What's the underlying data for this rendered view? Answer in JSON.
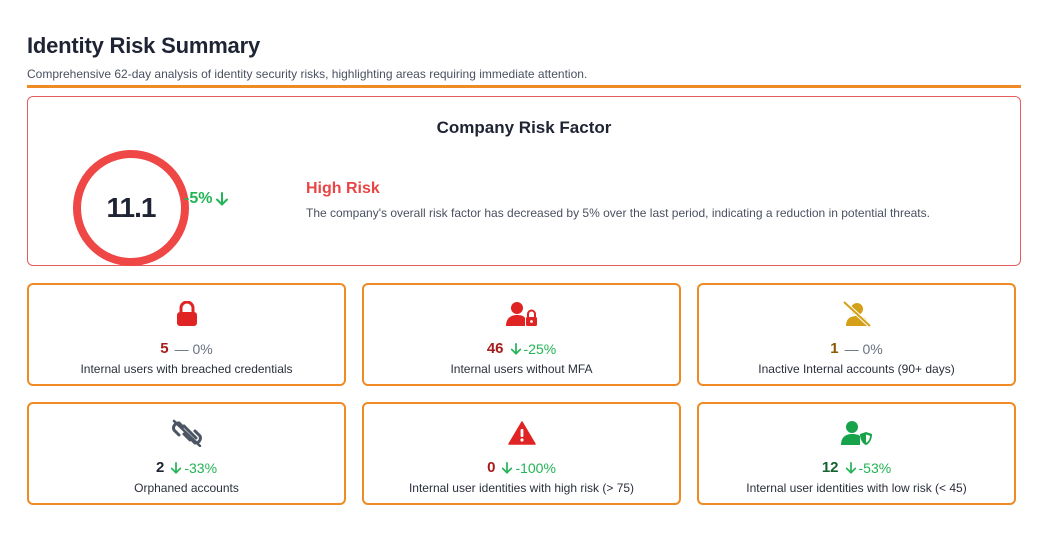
{
  "header": {
    "title": "Identity Risk Summary",
    "subtitle": "Comprehensive 62-day analysis of identity security risks, highlighting areas requiring immediate attention."
  },
  "risk_factor": {
    "title": "Company Risk Factor",
    "value": "11.1",
    "change": "-5%",
    "level": "High Risk",
    "description": "The company's overall risk factor has decreased by 5% over the last period, indicating a reduction in potential threats.",
    "color": "#ef4646"
  },
  "metrics": [
    {
      "value": "5",
      "change": "— 0%",
      "label": "Internal users with breached credentials",
      "icon": "lock-icon",
      "value_color": "#a61c1c",
      "icon_color": "#e02424"
    },
    {
      "value": "46",
      "change": "-25%",
      "label": "Internal users without MFA",
      "icon": "user-lock-icon",
      "value_color": "#a61c1c",
      "icon_color": "#e02424"
    },
    {
      "value": "1",
      "change": "— 0%",
      "label": "Inactive Internal accounts (90+ days)",
      "icon": "user-slash-icon",
      "value_color": "#8a5a00",
      "icon_color": "#d4a017"
    },
    {
      "value": "2",
      "change": "-33%",
      "label": "Orphaned accounts",
      "icon": "broken-link-icon",
      "value_color": "#1e2433",
      "icon_color": "#4b5563"
    },
    {
      "value": "0",
      "change": "-100%",
      "label": "Internal user identities with high risk (> 75)",
      "icon": "warning-icon",
      "value_color": "#a61c1c",
      "icon_color": "#e02424"
    },
    {
      "value": "12",
      "change": "-53%",
      "label": "Internal user identities with low risk (< 45)",
      "icon": "user-shield-icon",
      "value_color": "#14632e",
      "icon_color": "#16a34a"
    }
  ]
}
